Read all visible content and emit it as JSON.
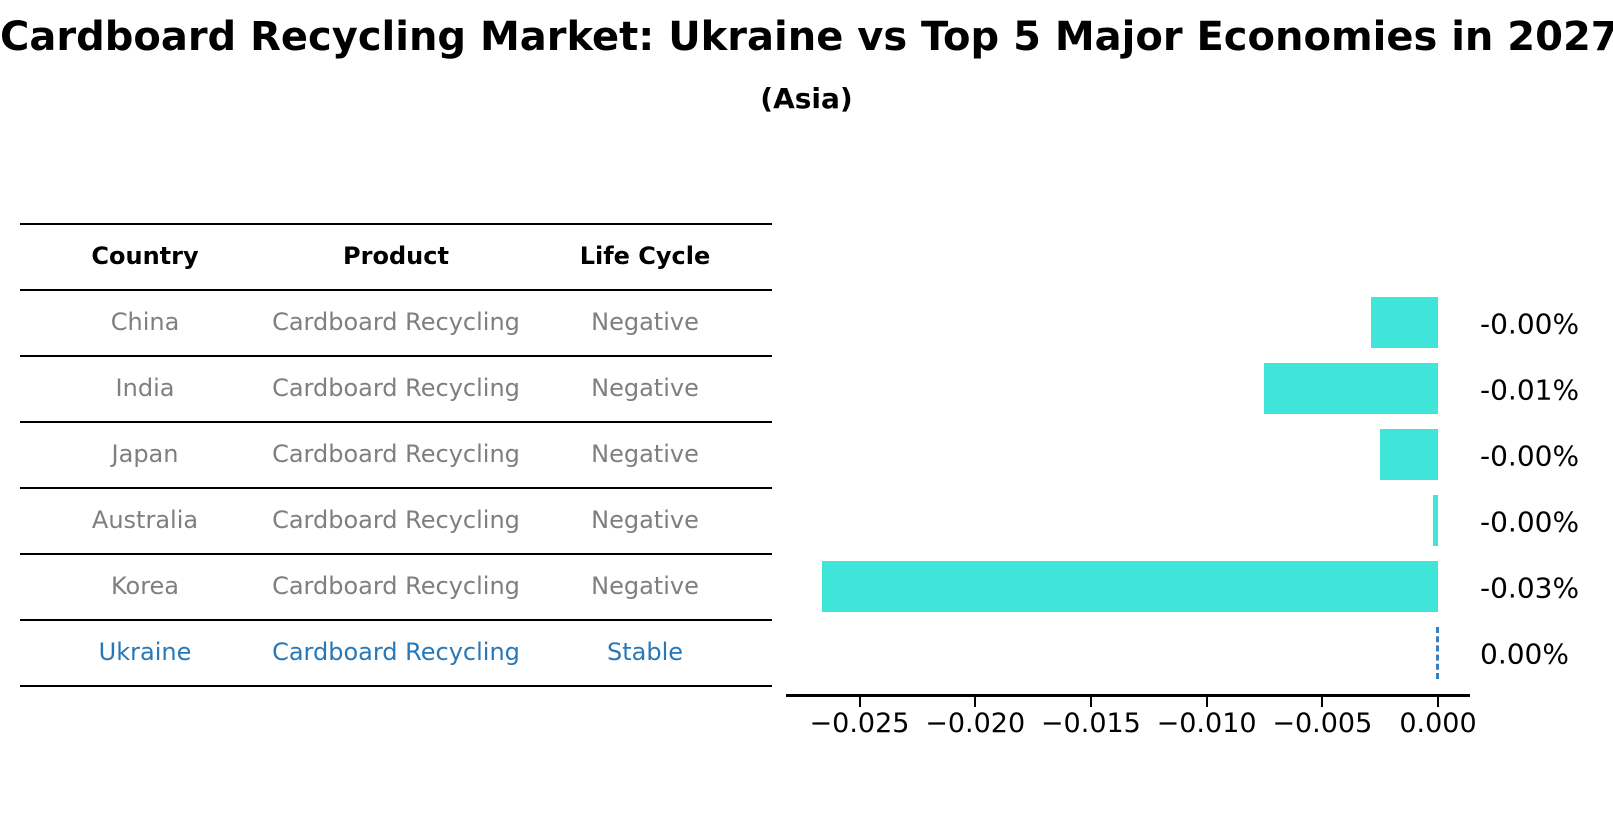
{
  "title": "Cardboard Recycling Market: Ukraine vs Top 5 Major Economies in 2027",
  "subtitle": "(Asia)",
  "table": {
    "headers": [
      "Country",
      "Product",
      "Life Cycle"
    ],
    "rows": [
      {
        "country": "China",
        "product": "Cardboard Recycling",
        "life_cycle": "Negative",
        "highlight": false
      },
      {
        "country": "India",
        "product": "Cardboard Recycling",
        "life_cycle": "Negative",
        "highlight": false
      },
      {
        "country": "Japan",
        "product": "Cardboard Recycling",
        "life_cycle": "Negative",
        "highlight": false
      },
      {
        "country": "Australia",
        "product": "Cardboard Recycling",
        "life_cycle": "Negative",
        "highlight": false
      },
      {
        "country": "Korea",
        "product": "Cardboard Recycling",
        "life_cycle": "Negative",
        "highlight": false
      },
      {
        "country": "Ukraine",
        "product": "Cardboard Recycling",
        "life_cycle": "Stable",
        "highlight": true
      }
    ]
  },
  "chart_data": {
    "type": "bar",
    "orientation": "horizontal",
    "title": "Cardboard Recycling Market: Ukraine vs Top 5 Major Economies in 2027",
    "subtitle": "(Asia)",
    "categories": [
      "China",
      "India",
      "Japan",
      "Australia",
      "Korea",
      "Ukraine"
    ],
    "values": [
      -0.0029,
      -0.0075,
      -0.0025,
      -0.0002,
      -0.0266,
      0.0
    ],
    "value_labels": [
      "-0.00%",
      "-0.01%",
      "-0.00%",
      "-0.00%",
      "-0.03%",
      "0.00%"
    ],
    "x_ticks": [
      {
        "label": "−0.025",
        "value": -0.025
      },
      {
        "label": "−0.020",
        "value": -0.02
      },
      {
        "label": "−0.015",
        "value": -0.015
      },
      {
        "label": "−0.010",
        "value": -0.01
      },
      {
        "label": "−0.005",
        "value": -0.005
      },
      {
        "label": "0.000",
        "value": 0.0
      }
    ],
    "xlim": [
      -0.0282,
      0.0014
    ],
    "grid": false,
    "legend": null,
    "bar_color": "#40E5DA",
    "zero_marker_style": "dashed-line",
    "zero_marker_color": "#3A7EBF",
    "highlight_text_color": "#2878B8",
    "muted_text_color": "#7F7F7F",
    "axis_color": "#000000"
  }
}
